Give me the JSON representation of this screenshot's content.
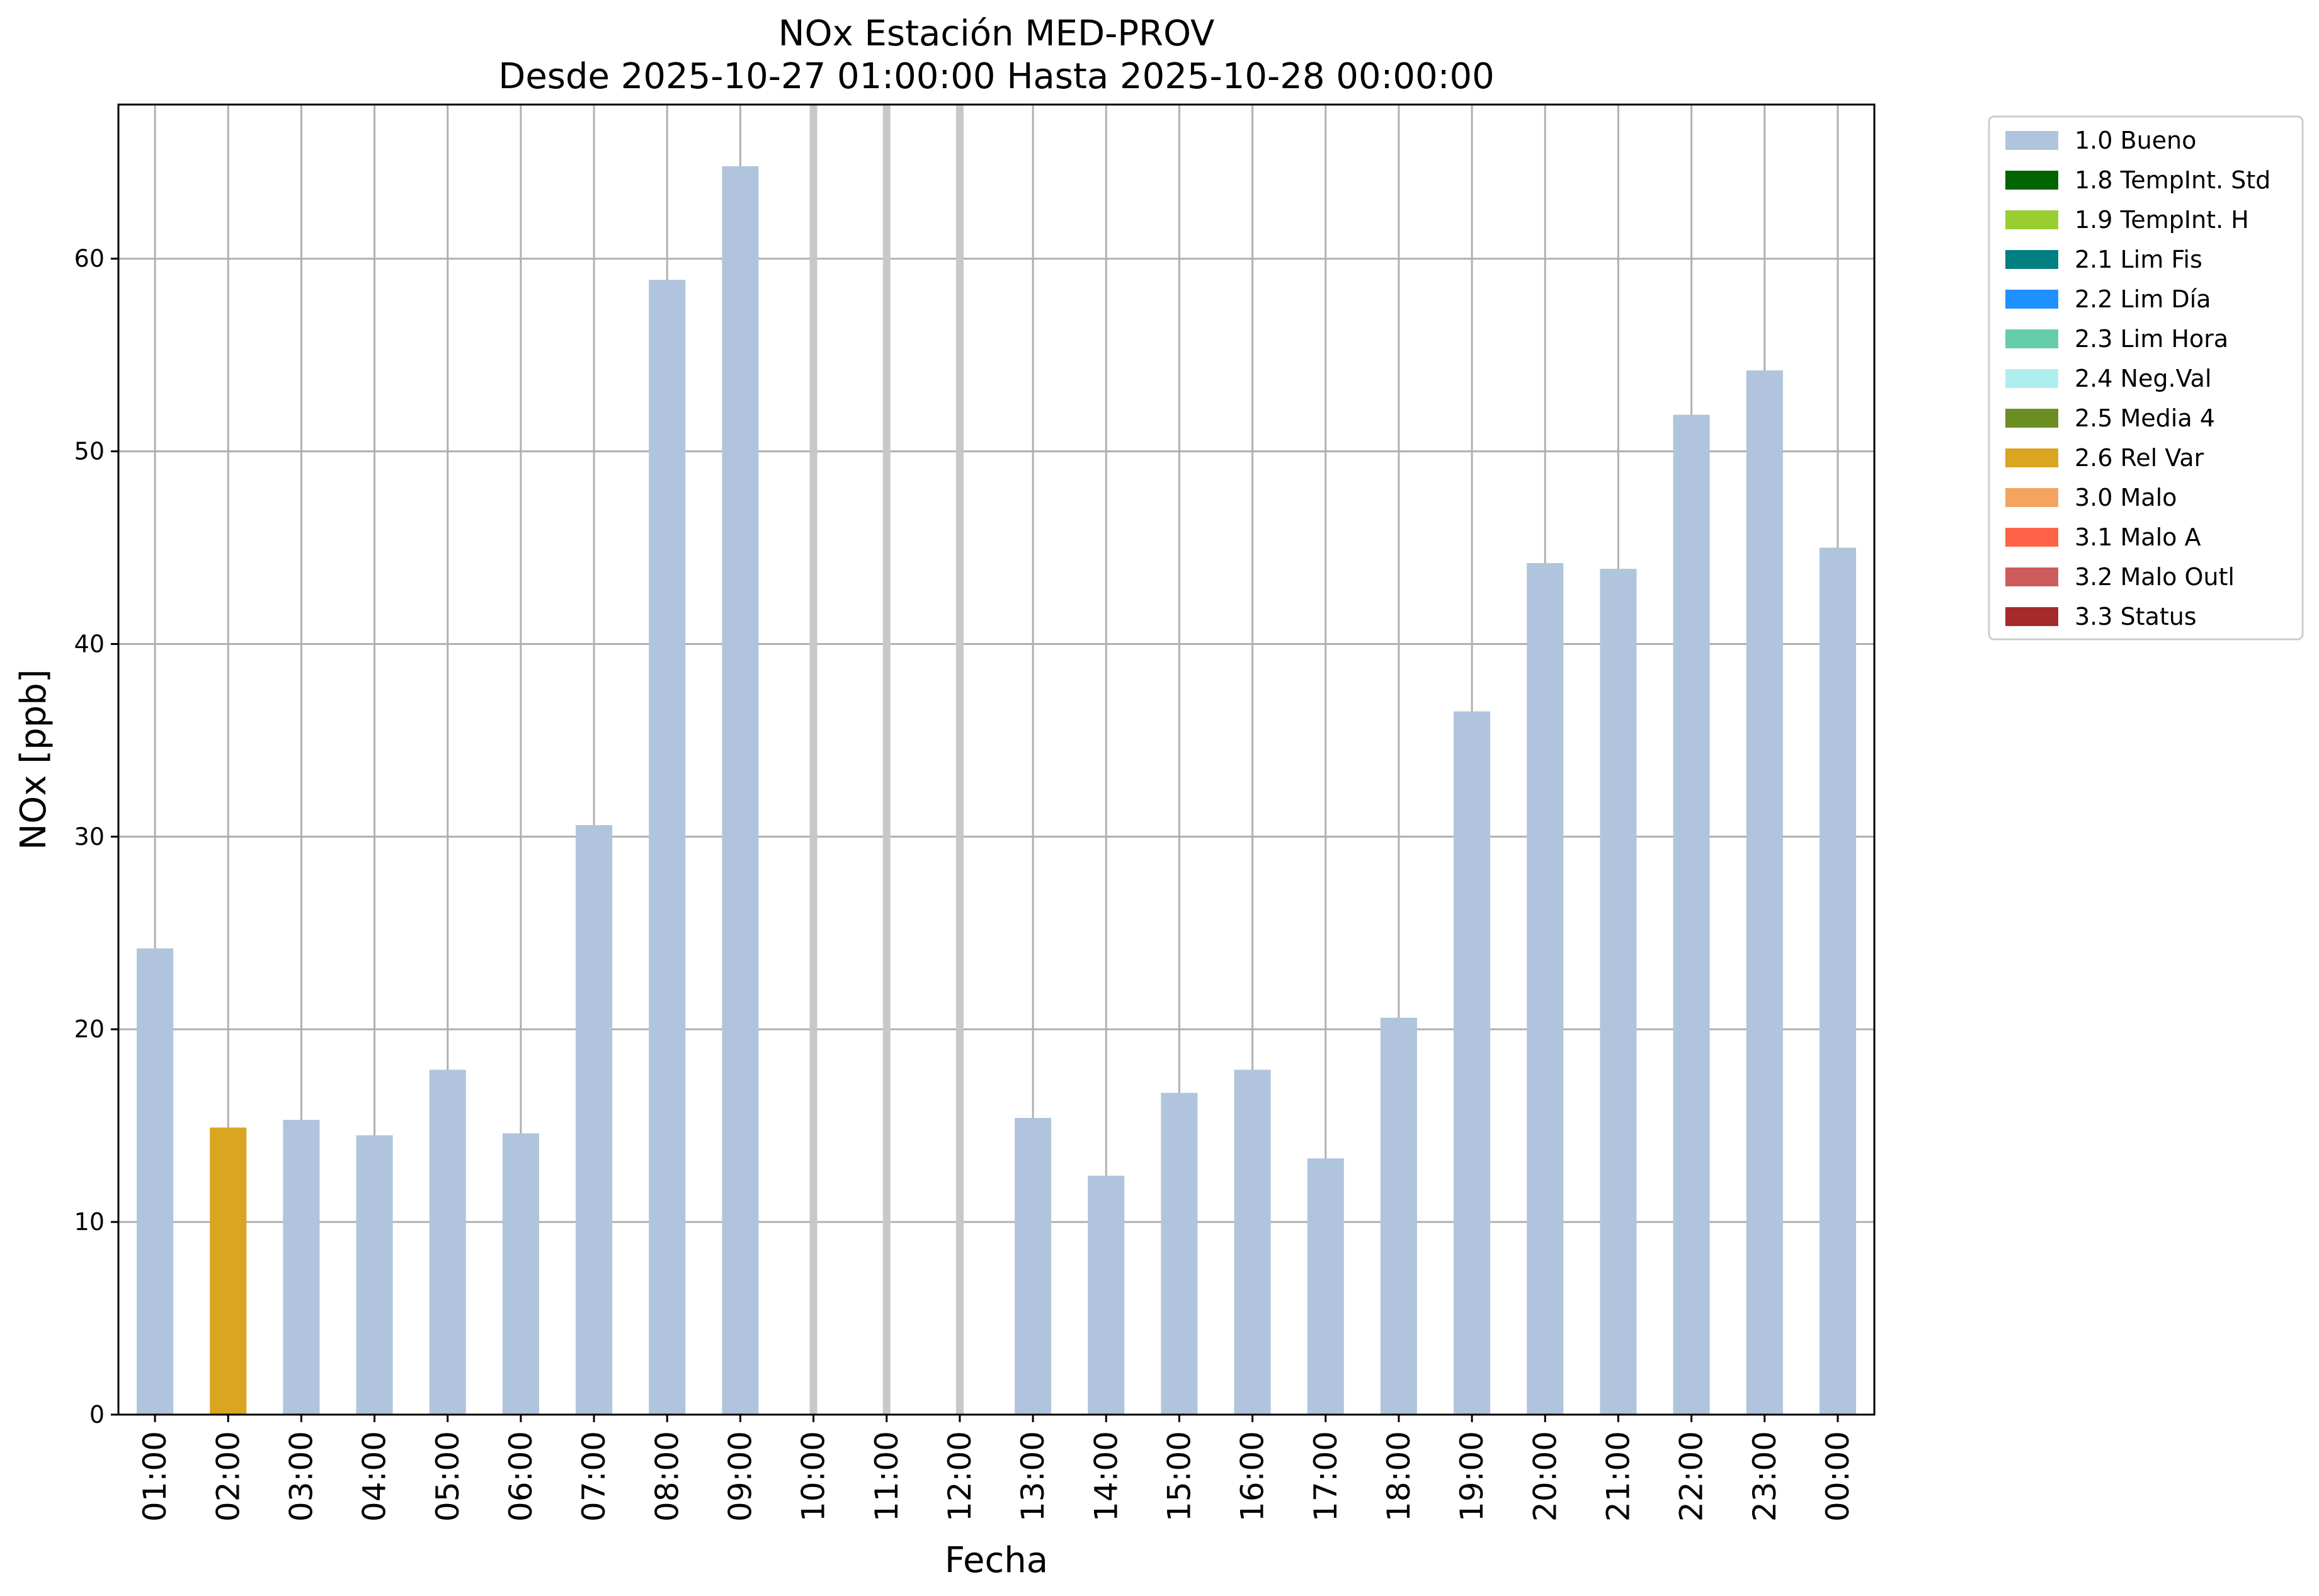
{
  "chart_data": {
    "type": "bar",
    "title": "NOx Estación MED-PROV",
    "subtitle": "Desde 2025-10-27 01:00:00 Hasta 2025-10-28 00:00:00",
    "xlabel": "Fecha",
    "ylabel": "NOx [ppb]",
    "ylim": [
      0,
      68
    ],
    "yticks": [
      0,
      10,
      20,
      30,
      40,
      50,
      60
    ],
    "grid": true,
    "legend_position": "outside-top-right",
    "categories": [
      "01:00",
      "02:00",
      "03:00",
      "04:00",
      "05:00",
      "06:00",
      "07:00",
      "08:00",
      "09:00",
      "10:00",
      "11:00",
      "12:00",
      "13:00",
      "14:00",
      "15:00",
      "16:00",
      "17:00",
      "18:00",
      "19:00",
      "20:00",
      "21:00",
      "22:00",
      "23:00",
      "00:00"
    ],
    "values": [
      24.2,
      14.9,
      15.3,
      14.5,
      17.9,
      14.6,
      30.6,
      58.9,
      64.8,
      null,
      null,
      null,
      15.4,
      12.4,
      16.7,
      17.9,
      13.3,
      20.6,
      36.5,
      44.2,
      43.9,
      51.9,
      54.2,
      45.0
    ],
    "flags": [
      "1.0 Bueno",
      "2.6 Rel Var",
      "1.0 Bueno",
      "1.0 Bueno",
      "1.0 Bueno",
      "1.0 Bueno",
      "1.0 Bueno",
      "1.0 Bueno",
      "1.0 Bueno",
      null,
      null,
      null,
      "1.0 Bueno",
      "1.0 Bueno",
      "1.0 Bueno",
      "1.0 Bueno",
      "1.0 Bueno",
      "1.0 Bueno",
      "1.0 Bueno",
      "1.0 Bueno",
      "1.0 Bueno",
      "1.0 Bueno",
      "1.0 Bueno",
      "1.0 Bueno"
    ],
    "missing_marker_color": "#c8c8c8",
    "legend": [
      {
        "label": "1.0 Bueno",
        "color": "#b0c4de"
      },
      {
        "label": "1.8 TempInt. Std",
        "color": "#006400"
      },
      {
        "label": "1.9 TempInt. H",
        "color": "#9acd32"
      },
      {
        "label": "2.1 Lim Fis",
        "color": "#008080"
      },
      {
        "label": "2.2 Lim Día",
        "color": "#1e90ff"
      },
      {
        "label": "2.3 Lim Hora",
        "color": "#66cdaa"
      },
      {
        "label": "2.4 Neg.Val",
        "color": "#afeeee"
      },
      {
        "label": "2.5 Media 4",
        "color": "#6b8e23"
      },
      {
        "label": "2.6 Rel Var",
        "color": "#daa520"
      },
      {
        "label": "3.0 Malo",
        "color": "#f4a460"
      },
      {
        "label": "3.1 Malo A",
        "color": "#ff6347"
      },
      {
        "label": "3.2 Malo Outl",
        "color": "#cd5c5c"
      },
      {
        "label": "3.3 Status",
        "color": "#a52a2a"
      }
    ]
  }
}
